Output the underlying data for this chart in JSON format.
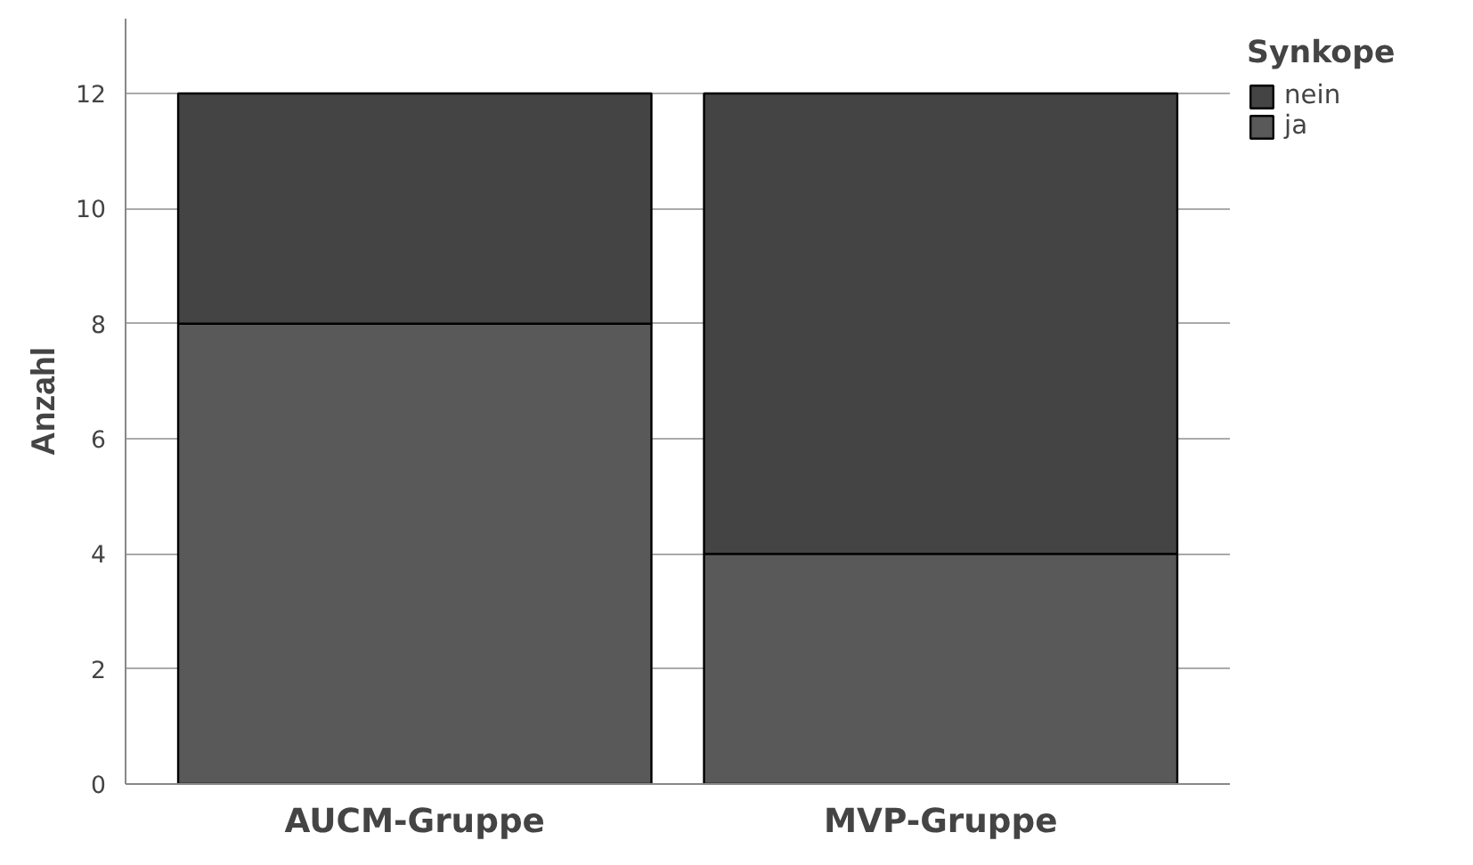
{
  "chart_data": {
    "type": "bar",
    "stacked": true,
    "ylabel": "Anzahl",
    "legend_title": "Synkope",
    "categories": [
      "AUCM-Gruppe",
      "MVP-Gruppe"
    ],
    "series": [
      {
        "name": "ja",
        "color": "#595959",
        "values": [
          8,
          4
        ]
      },
      {
        "name": "nein",
        "color": "#444444",
        "values": [
          4,
          8
        ]
      }
    ],
    "ylim": [
      0,
      13.3
    ],
    "yticks": [
      0,
      2,
      4,
      6,
      8,
      10,
      12
    ],
    "grid": "y",
    "legend": "top right"
  }
}
